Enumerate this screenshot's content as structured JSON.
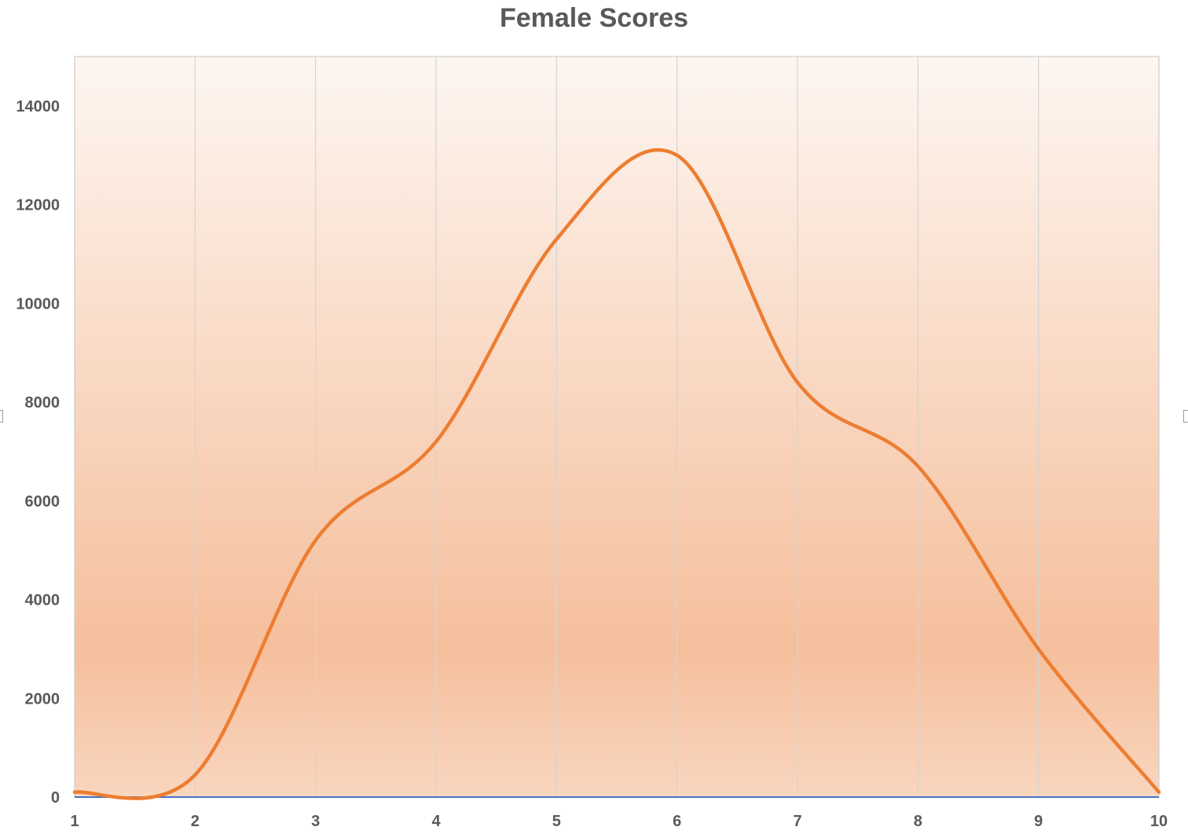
{
  "chart_data": {
    "type": "line",
    "title": "Female Scores",
    "xlabel": "",
    "ylabel": "",
    "x": [
      1,
      2,
      3,
      4,
      5,
      6,
      7,
      8,
      9,
      10
    ],
    "series": [
      {
        "values": [
          100,
          450,
          5200,
          7200,
          11300,
          13000,
          8400,
          6700,
          3000,
          100
        ],
        "color": "#ED7D31"
      }
    ],
    "xlim": [
      1,
      10
    ],
    "ylim": [
      0,
      15000
    ],
    "y_ticks": [
      0,
      2000,
      4000,
      6000,
      8000,
      10000,
      12000,
      14000
    ],
    "x_ticks": [
      1,
      2,
      3,
      4,
      5,
      6,
      7,
      8,
      9,
      10
    ],
    "grid": {
      "vertical": true,
      "horizontal": false
    },
    "smooth": true,
    "background": "orange-gradient"
  }
}
